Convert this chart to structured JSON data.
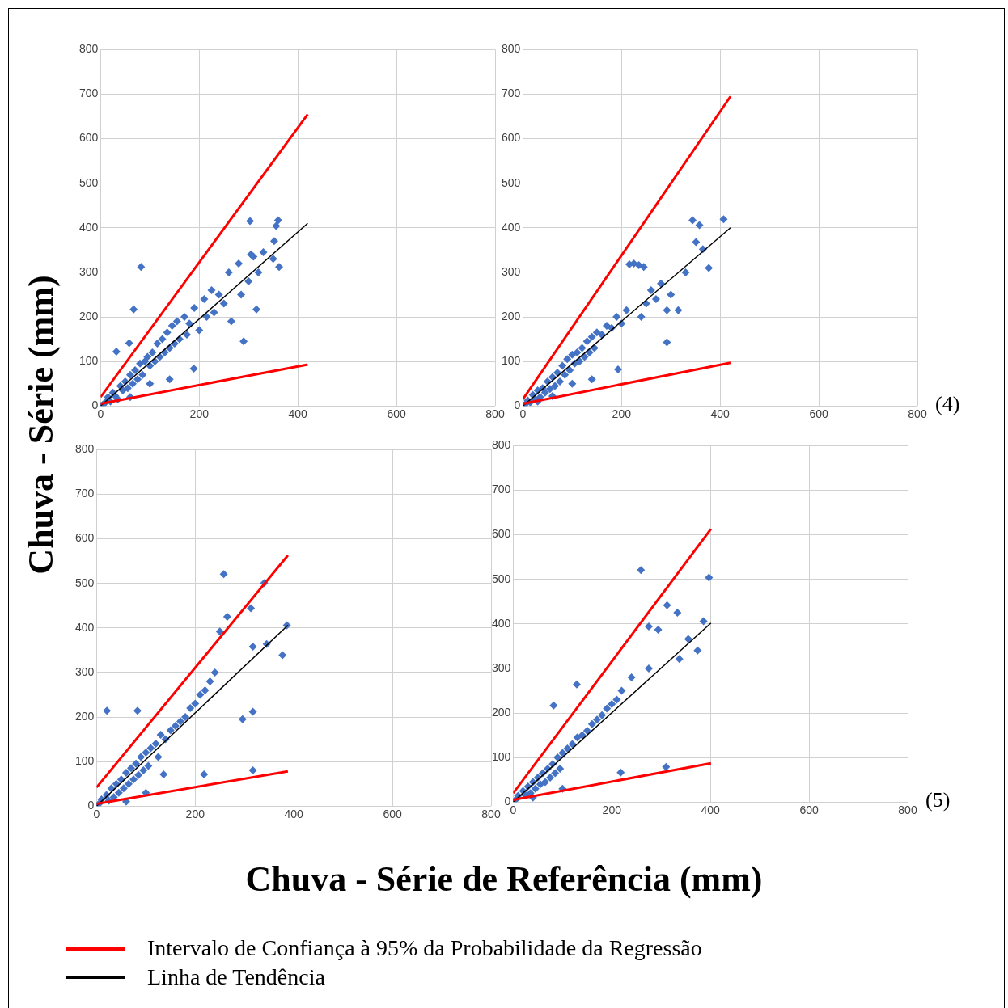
{
  "chart_data": [
    {
      "type": "scatter",
      "xlabel": "Chuva - Série de Referência (mm)",
      "ylabel": "Chuva - Série (mm)",
      "legend": "bottom",
      "xlim": [
        0,
        800
      ],
      "xticks": [
        0,
        200,
        400,
        600,
        800
      ],
      "ylim": [
        0,
        800
      ],
      "yticks": [
        0,
        100,
        200,
        300,
        400,
        500,
        600,
        700,
        800
      ],
      "grid": true,
      "series": [
        {
          "color": "#4472c4",
          "marker": "diamond",
          "x": [
            0,
            5,
            10,
            15,
            20,
            25,
            30,
            35,
            40,
            45,
            50,
            55,
            60,
            65,
            70,
            75,
            80,
            85,
            90,
            95,
            100,
            105,
            110,
            115,
            120,
            125,
            130,
            135,
            140,
            145,
            150,
            155,
            160,
            170,
            175,
            180,
            190,
            200,
            210,
            215,
            225,
            230,
            240,
            250,
            260,
            265,
            280,
            285,
            290,
            300,
            305,
            310,
            320,
            316,
            330,
            350,
            352,
            356,
            360,
            362,
            303,
            82,
            67,
            32,
            58,
            189,
            140,
            60,
            100
          ],
          "values": [
            0,
            3,
            8,
            20,
            10,
            30,
            22,
            15,
            45,
            35,
            55,
            40,
            70,
            50,
            80,
            60,
            95,
            70,
            100,
            110,
            90,
            120,
            100,
            140,
            110,
            150,
            120,
            165,
            130,
            180,
            140,
            190,
            150,
            200,
            160,
            185,
            220,
            170,
            240,
            200,
            260,
            210,
            250,
            230,
            300,
            190,
            320,
            250,
            145,
            280,
            340,
            335,
            300,
            217,
            345,
            330,
            370,
            404,
            417,
            312,
            415,
            312,
            217,
            122,
            141,
            84,
            60,
            20,
            50
          ]
        },
        {
          "type": "line",
          "name": "Intervalo de Confiança à 95% da Probabilidade da Regressão",
          "color": "#ff0000",
          "marker": "none",
          "x": [
            0,
            420
          ],
          "values": [
            20,
            655
          ]
        },
        {
          "type": "line",
          "color": "#ff0000",
          "marker": "none",
          "x": [
            0,
            420
          ],
          "values": [
            5,
            93
          ]
        },
        {
          "type": "line",
          "name": "Linha de Tendência",
          "color": "#000000",
          "marker": "none",
          "x": [
            0,
            420
          ],
          "values": [
            0,
            410
          ]
        }
      ]
    },
    {
      "type": "scatter",
      "annotations": [
        "(4)"
      ],
      "xlim": [
        0,
        800
      ],
      "xticks": [
        0,
        200,
        400,
        600,
        800
      ],
      "ylim": [
        0,
        800
      ],
      "yticks": [
        0,
        100,
        200,
        300,
        400,
        500,
        600,
        700,
        800
      ],
      "grid": true,
      "series": [
        {
          "color": "#4472c4",
          "marker": "diamond",
          "x": [
            0,
            5,
            10,
            15,
            20,
            25,
            30,
            35,
            40,
            45,
            50,
            55,
            60,
            65,
            70,
            75,
            80,
            85,
            90,
            95,
            100,
            105,
            110,
            115,
            120,
            125,
            130,
            135,
            140,
            145,
            150,
            160,
            170,
            180,
            190,
            200,
            210,
            216,
            225,
            235,
            245,
            250,
            260,
            270,
            280,
            292,
            315,
            292,
            344,
            407,
            358,
            351,
            365,
            377,
            193,
            140,
            60,
            100,
            30,
            240,
            300,
            330
          ],
          "values": [
            0,
            4,
            12,
            8,
            25,
            15,
            35,
            20,
            40,
            30,
            55,
            38,
            65,
            45,
            75,
            55,
            90,
            70,
            105,
            80,
            115,
            95,
            120,
            100,
            130,
            110,
            145,
            120,
            155,
            130,
            165,
            160,
            180,
            175,
            200,
            185,
            215,
            318,
            320,
            316,
            312,
            230,
            260,
            240,
            275,
            143,
            215,
            215,
            417,
            419,
            406,
            368,
            352,
            310,
            82,
            60,
            22,
            50,
            10,
            200,
            250,
            300
          ]
        },
        {
          "type": "line",
          "color": "#ff0000",
          "marker": "none",
          "x": [
            0,
            421
          ],
          "values": [
            15,
            695
          ]
        },
        {
          "type": "line",
          "color": "#ff0000",
          "marker": "none",
          "x": [
            0,
            421
          ],
          "values": [
            5,
            97
          ]
        },
        {
          "type": "line",
          "color": "#000000",
          "marker": "none",
          "x": [
            0,
            421
          ],
          "values": [
            0,
            400
          ]
        }
      ]
    },
    {
      "type": "scatter",
      "xlim": [
        0,
        800
      ],
      "xticks": [
        0,
        200,
        400,
        600,
        800
      ],
      "ylim": [
        0,
        800
      ],
      "yticks": [
        0,
        100,
        200,
        300,
        400,
        500,
        600,
        700,
        800
      ],
      "grid": true,
      "series": [
        {
          "color": "#4472c4",
          "marker": "diamond",
          "x": [
            0,
            5,
            10,
            15,
            20,
            25,
            30,
            35,
            40,
            45,
            50,
            55,
            60,
            65,
            70,
            75,
            80,
            85,
            90,
            95,
            100,
            105,
            110,
            120,
            125,
            130,
            140,
            150,
            160,
            170,
            180,
            190,
            200,
            210,
            220,
            230,
            240,
            258,
            340,
            313,
            265,
            386,
            377,
            345,
            250,
            317,
            317,
            296,
            317,
            21,
            83,
            136,
            218,
            60,
            80,
            100
          ],
          "values": [
            0,
            5,
            15,
            null,
            25,
            12,
            40,
            20,
            50,
            30,
            60,
            40,
            75,
            50,
            85,
            60,
            95,
            70,
            110,
            80,
            120,
            90,
            130,
            140,
            110,
            160,
            150,
            170,
            180,
            190,
            200,
            220,
            230,
            250,
            260,
            280,
            300,
            521,
            501,
            444,
            425,
            406,
            339,
            364,
            392,
            358,
            212,
            195,
            80,
            214,
            214,
            71,
            71,
            10,
            null,
            30
          ]
        },
        {
          "type": "line",
          "color": "#ff0000",
          "marker": "none",
          "x": [
            0,
            388
          ],
          "values": [
            42,
            563
          ]
        },
        {
          "type": "line",
          "color": "#ff0000",
          "marker": "none",
          "x": [
            0,
            388
          ],
          "values": [
            5,
            78
          ]
        },
        {
          "type": "line",
          "color": "#000000",
          "marker": "none",
          "x": [
            0,
            388
          ],
          "values": [
            0,
            406
          ]
        }
      ]
    },
    {
      "type": "scatter",
      "annotations": [
        "(5)"
      ],
      "xlim": [
        0,
        800
      ],
      "xticks": [
        0,
        200,
        400,
        600,
        800
      ],
      "ylim": [
        0,
        800
      ],
      "yticks": [
        0,
        100,
        200,
        300,
        400,
        500,
        600,
        700,
        800
      ],
      "grid": true,
      "series": [
        {
          "color": "#4472c4",
          "marker": "diamond",
          "x": [
            0,
            5,
            10,
            15,
            20,
            25,
            30,
            35,
            40,
            45,
            50,
            55,
            60,
            65,
            70,
            75,
            80,
            85,
            90,
            95,
            100,
            110,
            120,
            130,
            140,
            150,
            160,
            170,
            180,
            190,
            200,
            210,
            220,
            240,
            259,
            397,
            312,
            333,
            386,
            275,
            294,
            355,
            374,
            337,
            275,
            129,
            82,
            218,
            310,
            40,
            70,
            100
          ],
          "values": [
            0,
            5,
            14,
            null,
            25,
            15,
            35,
            20,
            45,
            30,
            55,
            40,
            65,
            45,
            75,
            55,
            85,
            65,
            100,
            75,
            110,
            120,
            130,
            145,
            150,
            160,
            175,
            185,
            195,
            210,
            220,
            230,
            250,
            280,
            521,
            504,
            442,
            425,
            406,
            394,
            387,
            366,
            340,
            321,
            300,
            264,
            217,
            66,
            79,
            10,
            null,
            30
          ]
        },
        {
          "type": "line",
          "color": "#ff0000",
          "marker": "none",
          "x": [
            0,
            401
          ],
          "values": [
            20,
            613
          ]
        },
        {
          "type": "line",
          "color": "#ff0000",
          "marker": "none",
          "x": [
            0,
            401
          ],
          "values": [
            5,
            87
          ]
        },
        {
          "type": "line",
          "color": "#000000",
          "marker": "none",
          "x": [
            0,
            401
          ],
          "values": [
            0,
            402
          ]
        }
      ]
    }
  ]
}
